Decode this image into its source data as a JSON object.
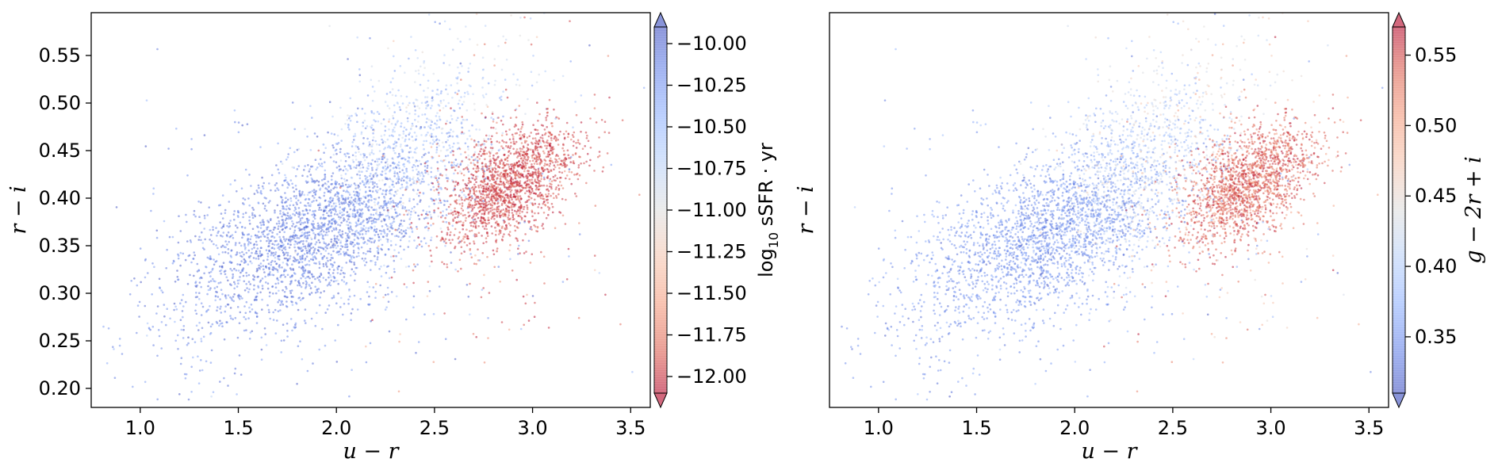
{
  "chart_data": [
    {
      "type": "scatter",
      "xlabel": "u − r",
      "ylabel": "r − i",
      "xlim": [
        0.75,
        3.6
      ],
      "ylim": [
        0.18,
        0.595
      ],
      "xticks": [
        1.0,
        1.5,
        2.0,
        2.5,
        3.0,
        3.5
      ],
      "xtick_labels": [
        "1.0",
        "1.5",
        "2.0",
        "2.5",
        "3.0",
        "3.5"
      ],
      "yticks": [
        0.2,
        0.25,
        0.3,
        0.35,
        0.4,
        0.45,
        0.5,
        0.55
      ],
      "ytick_labels": [
        "0.20",
        "0.25",
        "0.30",
        "0.35",
        "0.40",
        "0.45",
        "0.50",
        "0.55"
      ],
      "grid": false,
      "point_alpha": 0.5,
      "colormap": "coolwarm_r",
      "colorbar": {
        "label_parts": [
          "log",
          "10",
          " sSFR · yr"
        ],
        "range": [
          -12.1,
          -9.9
        ],
        "extend": "both",
        "ticks": [
          -12.0,
          -11.75,
          -11.5,
          -11.25,
          -11.0,
          -10.75,
          -10.5,
          -10.25,
          -10.0
        ],
        "tick_labels": [
          "−12.00",
          "−11.75",
          "−11.50",
          "−11.25",
          "−11.00",
          "−10.75",
          "−10.50",
          "−10.25",
          "−10.00"
        ]
      },
      "populations": [
        {
          "n": 1500,
          "center": [
            1.9,
            0.365
          ],
          "spread": [
            0.3,
            0.042
          ],
          "corr": 0.55,
          "value": -10.1,
          "value_jitter": 0.1
        },
        {
          "n": 700,
          "center": [
            1.7,
            0.335
          ],
          "spread": [
            0.42,
            0.06
          ],
          "corr": 0.5,
          "value": -10.15,
          "value_jitter": 0.15
        },
        {
          "n": 700,
          "center": [
            2.3,
            0.43
          ],
          "spread": [
            0.22,
            0.05
          ],
          "corr": 0.4,
          "value": -10.5,
          "value_jitter": 0.2
        },
        {
          "n": 300,
          "center": [
            2.5,
            0.47
          ],
          "spread": [
            0.3,
            0.06
          ],
          "corr": 0.3,
          "value": -10.8,
          "value_jitter": 0.15
        },
        {
          "n": 1700,
          "center": [
            2.88,
            0.415
          ],
          "spread": [
            0.17,
            0.032
          ],
          "corr": 0.5,
          "value": -11.95,
          "value_jitter": 0.1
        },
        {
          "n": 150,
          "center": [
            2.8,
            0.38
          ],
          "spread": [
            0.35,
            0.1
          ],
          "corr": 0.2,
          "value": -11.8,
          "value_jitter": 0.2
        },
        {
          "n": 250,
          "center": [
            2.0,
            0.38
          ],
          "spread": [
            0.7,
            0.12
          ],
          "corr": 0.3,
          "value": -10.2,
          "value_jitter": 0.2
        }
      ]
    },
    {
      "type": "scatter",
      "xlabel": "u − r",
      "ylabel": "r − i",
      "xlim": [
        0.75,
        3.6
      ],
      "ylim": [
        0.18,
        0.595
      ],
      "xticks": [
        1.0,
        1.5,
        2.0,
        2.5,
        3.0,
        3.5
      ],
      "xtick_labels": [
        "1.0",
        "1.5",
        "2.0",
        "2.5",
        "3.0",
        "3.5"
      ],
      "yticks": [],
      "ytick_labels": [],
      "grid": false,
      "point_alpha": 0.5,
      "colormap": "coolwarm",
      "colorbar": {
        "label_parts": [
          "g − 2r + i"
        ],
        "range": [
          0.31,
          0.57
        ],
        "extend": "both",
        "ticks": [
          0.35,
          0.4,
          0.45,
          0.5,
          0.55
        ],
        "tick_labels": [
          "0.35",
          "0.40",
          "0.45",
          "0.50",
          "0.55"
        ]
      },
      "populations": [
        {
          "n": 1500,
          "center": [
            1.9,
            0.365
          ],
          "spread": [
            0.3,
            0.042
          ],
          "corr": 0.55,
          "value": 0.345,
          "value_jitter": 0.012
        },
        {
          "n": 700,
          "center": [
            1.7,
            0.335
          ],
          "spread": [
            0.42,
            0.06
          ],
          "corr": 0.5,
          "value": 0.35,
          "value_jitter": 0.015
        },
        {
          "n": 700,
          "center": [
            2.3,
            0.43
          ],
          "spread": [
            0.22,
            0.05
          ],
          "corr": 0.4,
          "value": 0.4,
          "value_jitter": 0.02
        },
        {
          "n": 300,
          "center": [
            2.5,
            0.47
          ],
          "spread": [
            0.3,
            0.06
          ],
          "corr": 0.3,
          "value": 0.44,
          "value_jitter": 0.02
        },
        {
          "n": 1700,
          "center": [
            2.88,
            0.415
          ],
          "spread": [
            0.17,
            0.032
          ],
          "corr": 0.5,
          "value": 0.54,
          "value_jitter": 0.02
        },
        {
          "n": 150,
          "center": [
            2.8,
            0.38
          ],
          "spread": [
            0.35,
            0.1
          ],
          "corr": 0.2,
          "value": 0.5,
          "value_jitter": 0.03
        },
        {
          "n": 250,
          "center": [
            2.0,
            0.38
          ],
          "spread": [
            0.7,
            0.12
          ],
          "corr": 0.3,
          "value": 0.36,
          "value_jitter": 0.02
        }
      ]
    }
  ]
}
